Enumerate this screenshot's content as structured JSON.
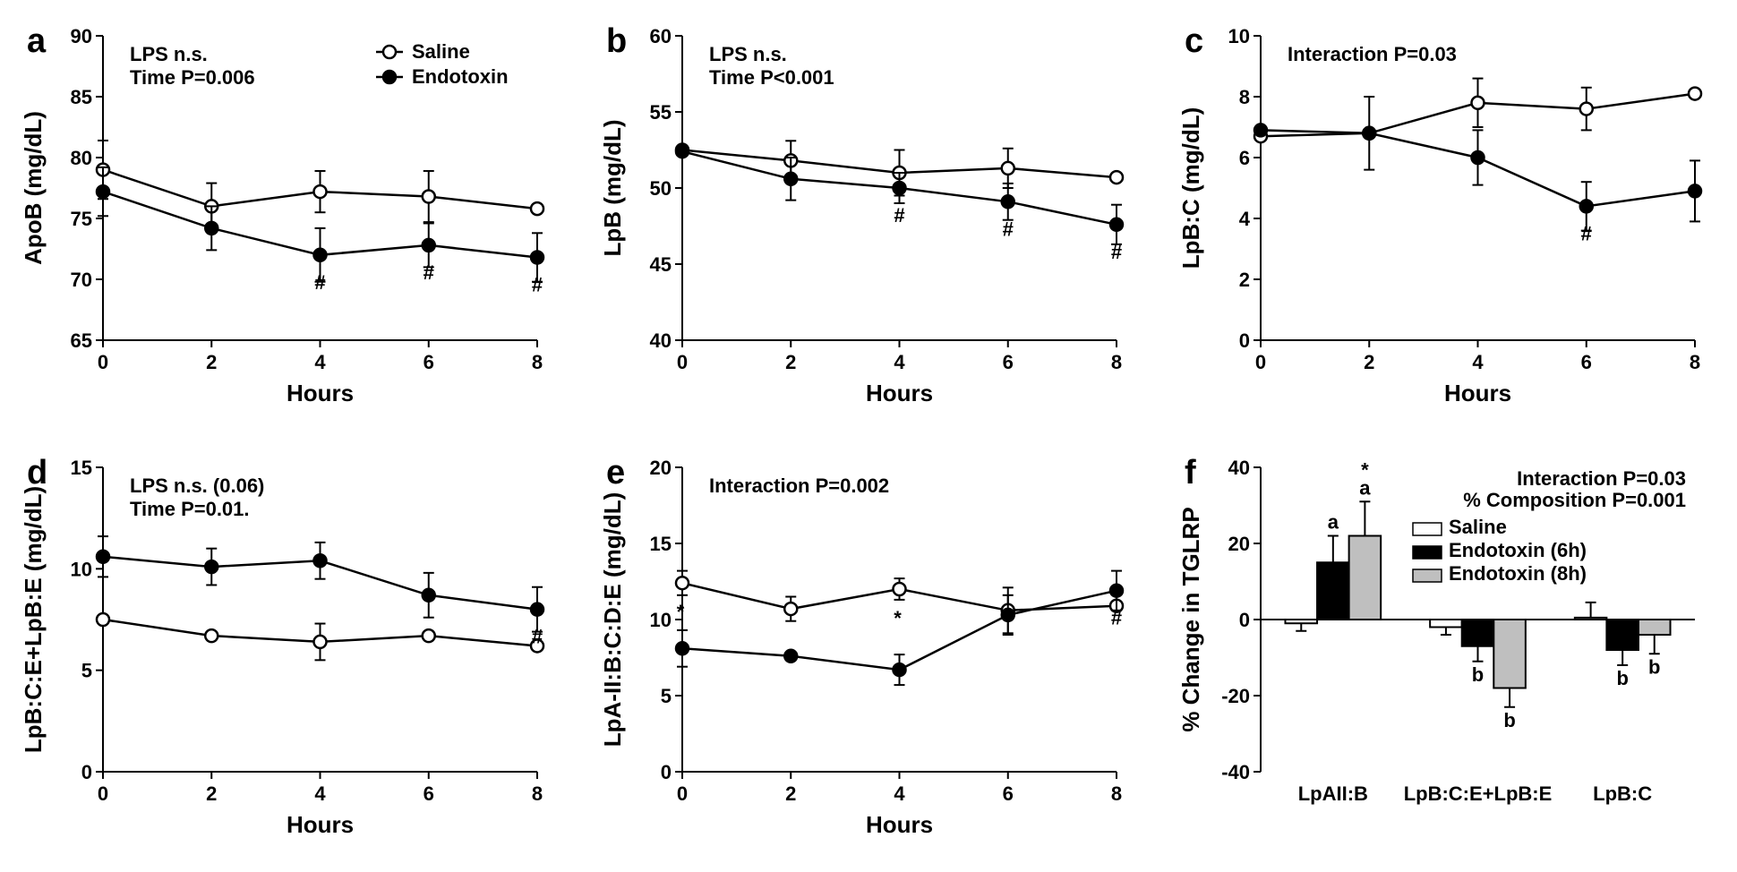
{
  "colors": {
    "bg": "#ffffff",
    "ink": "#000000",
    "saline_fill": "#ffffff",
    "endotoxin_fill": "#000000",
    "endotoxin8h_fill": "#bfbfbf"
  },
  "line_width": 2.5,
  "marker_radius": 7,
  "tick_fontsize": 22,
  "label_fontsize": 26,
  "letter_fontsize": 38,
  "annot_fontsize": 22,
  "panels": {
    "a": {
      "letter": "a",
      "ylabel": "ApoB (mg/dL)",
      "xlabel": "Hours",
      "xlim": [
        0,
        8
      ],
      "xticks": [
        0,
        2,
        4,
        6,
        8
      ],
      "ylim": [
        65,
        90
      ],
      "yticks": [
        65,
        70,
        75,
        80,
        85,
        90
      ],
      "annot": [
        "LPS  n.s.",
        "Time  P=0.006"
      ],
      "legend": {
        "open": "Saline",
        "filled": "Endotoxin"
      },
      "series": {
        "saline": {
          "x": [
            0,
            2,
            4,
            6,
            8
          ],
          "y": [
            79.0,
            76.0,
            77.2,
            76.8,
            75.8
          ],
          "err": [
            2.4,
            1.9,
            1.7,
            2.1,
            0
          ]
        },
        "endotoxin": {
          "x": [
            0,
            2,
            4,
            6,
            8
          ],
          "y": [
            77.2,
            74.2,
            72.0,
            72.8,
            71.8
          ],
          "err": [
            2.0,
            1.8,
            2.2,
            1.8,
            2.0
          ]
        }
      },
      "hash_x": [
        4,
        6,
        8
      ]
    },
    "b": {
      "letter": "b",
      "ylabel": "LpB (mg/dL)",
      "xlabel": "Hours",
      "xlim": [
        0,
        8
      ],
      "xticks": [
        0,
        2,
        4,
        6,
        8
      ],
      "ylim": [
        40,
        60
      ],
      "yticks": [
        40,
        45,
        50,
        55,
        60
      ],
      "annot": [
        "LPS  n.s.",
        "Time  P<0.001"
      ],
      "series": {
        "saline": {
          "x": [
            0,
            2,
            4,
            6,
            8
          ],
          "y": [
            52.5,
            51.8,
            51.0,
            51.3,
            50.7
          ],
          "err": [
            0,
            1.3,
            1.5,
            1.3,
            0
          ]
        },
        "endotoxin": {
          "x": [
            0,
            2,
            4,
            6,
            8
          ],
          "y": [
            52.4,
            50.6,
            50.0,
            49.1,
            47.6
          ],
          "err": [
            0,
            1.4,
            1.0,
            1.2,
            1.3
          ]
        }
      },
      "hash_x": [
        4,
        6,
        8
      ]
    },
    "c": {
      "letter": "c",
      "ylabel": "LpB:C (mg/dL)",
      "xlabel": "Hours",
      "xlim": [
        0,
        8
      ],
      "xticks": [
        0,
        2,
        4,
        6,
        8
      ],
      "ylim": [
        0,
        10
      ],
      "yticks": [
        0,
        2,
        4,
        6,
        8,
        10
      ],
      "annot": [
        "Interaction P=0.03"
      ],
      "series": {
        "saline": {
          "x": [
            0,
            2,
            4,
            6,
            8
          ],
          "y": [
            6.7,
            6.8,
            7.8,
            7.6,
            8.1
          ],
          "err": [
            0,
            1.2,
            0.8,
            0.7,
            0
          ]
        },
        "endotoxin": {
          "x": [
            0,
            2,
            4,
            6,
            8
          ],
          "y": [
            6.9,
            6.8,
            6.0,
            4.4,
            4.9
          ],
          "err": [
            0,
            0,
            0.9,
            0.8,
            1.0
          ]
        }
      },
      "hash_x": [
        6
      ]
    },
    "d": {
      "letter": "d",
      "ylabel": "LpB:C:E+LpB:E (mg/dL)",
      "xlabel": "Hours",
      "xlim": [
        0,
        8
      ],
      "xticks": [
        0,
        2,
        4,
        6,
        8
      ],
      "ylim": [
        0,
        15
      ],
      "yticks": [
        0,
        5,
        10,
        15
      ],
      "annot": [
        "LPS n.s. (0.06)",
        "Time  P=0.01."
      ],
      "series": {
        "saline": {
          "x": [
            0,
            2,
            4,
            6,
            8
          ],
          "y": [
            7.5,
            6.7,
            6.4,
            6.7,
            6.2
          ],
          "err": [
            0,
            0,
            0.9,
            0,
            0
          ]
        },
        "endotoxin": {
          "x": [
            0,
            2,
            4,
            6,
            8
          ],
          "y": [
            10.6,
            10.1,
            10.4,
            8.7,
            8.0
          ],
          "err": [
            1.0,
            0.9,
            0.9,
            1.1,
            1.1
          ]
        }
      },
      "hash_x": [
        8
      ]
    },
    "e": {
      "letter": "e",
      "ylabel": "LpA-II:B:C:D:E (mg/dL)",
      "xlabel": "Hours",
      "xlim": [
        0,
        8
      ],
      "xticks": [
        0,
        2,
        4,
        6,
        8
      ],
      "ylim": [
        0,
        20
      ],
      "yticks": [
        0,
        5,
        10,
        15,
        20
      ],
      "annot": [
        "Interaction   P=0.002"
      ],
      "series": {
        "saline": {
          "x": [
            0,
            2,
            4,
            6,
            8
          ],
          "y": [
            12.4,
            10.7,
            12.0,
            10.6,
            10.9
          ],
          "err": [
            0.8,
            0.8,
            0.7,
            1.5,
            0
          ]
        },
        "endotoxin": {
          "x": [
            0,
            2,
            4,
            6,
            8
          ],
          "y": [
            8.1,
            7.6,
            6.7,
            10.3,
            11.9
          ],
          "err": [
            1.2,
            0,
            1.0,
            1.3,
            1.3
          ]
        }
      },
      "hash_x": [
        8
      ],
      "star_x": [
        0,
        4
      ]
    },
    "f": {
      "letter": "f",
      "ylabel": "% Change in TGLRP",
      "xlim": [
        0,
        3
      ],
      "ylim": [
        -40,
        40
      ],
      "yticks": [
        -40,
        -20,
        0,
        20,
        40
      ],
      "annot": [
        "Interaction P=0.03",
        "% Composition P=0.001"
      ],
      "categories": [
        "LpAII:B",
        "LpB:C:E+LpB:E",
        "LpB:C"
      ],
      "legend": [
        "Saline",
        "Endotoxin (6h)",
        "Endotoxin (8h)"
      ],
      "bar_width": 0.22,
      "groups": [
        {
          "saline": {
            "y": -1.0,
            "err": 2.0
          },
          "e6": {
            "y": 15.0,
            "err": 7.0,
            "letter": "a"
          },
          "e8": {
            "y": 22.0,
            "err": 9.0,
            "letter": "a",
            "star": true
          }
        },
        {
          "saline": {
            "y": -2.0,
            "err": 2.0
          },
          "e6": {
            "y": -7.0,
            "err": 4.0,
            "letter": "b"
          },
          "e8": {
            "y": -18.0,
            "err": 5.0,
            "letter": "b"
          }
        },
        {
          "saline": {
            "y": 0.5,
            "err": 4.0
          },
          "e6": {
            "y": -8.0,
            "err": 4.0,
            "letter": "b"
          },
          "e8": {
            "y": -4.0,
            "err": 5.0,
            "letter": "b"
          }
        }
      ]
    }
  }
}
